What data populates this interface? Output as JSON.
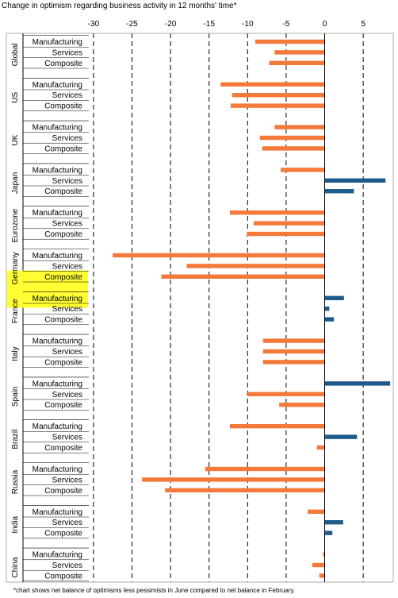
{
  "chart_data": {
    "type": "bar",
    "orientation": "horizontal",
    "title": "Change in optimism regarding business activity in 12 months' time*",
    "footnote": "*chart shows net balance of optimisms less pessimists in June compared to net balance in February.",
    "xlim": [
      -30,
      8
    ],
    "x_ticks": [
      -30,
      -25,
      -20,
      -15,
      -10,
      -5,
      0,
      5
    ],
    "grid": "vertical dashed",
    "colors": {
      "negative": "#f4793b",
      "positive": "#1f5a8c",
      "highlight": "#ffff33"
    },
    "highlight_group": "Germany",
    "groups": [
      {
        "name": "Global",
        "items": [
          {
            "label": "Manufacturing",
            "value": -9.0
          },
          {
            "label": "Services",
            "value": -6.5
          },
          {
            "label": "Composite",
            "value": -7.2
          }
        ]
      },
      {
        "name": "US",
        "items": [
          {
            "label": "Manufacturing",
            "value": -13.5
          },
          {
            "label": "Services",
            "value": -12.0
          },
          {
            "label": "Composite",
            "value": -12.2
          }
        ]
      },
      {
        "name": "UK",
        "items": [
          {
            "label": "Manufacturing",
            "value": -6.5
          },
          {
            "label": "Services",
            "value": -8.4
          },
          {
            "label": "Composite",
            "value": -8.1
          }
        ]
      },
      {
        "name": "Japan",
        "items": [
          {
            "label": "Manufacturing",
            "value": -5.7
          },
          {
            "label": "Services",
            "value": 7.9
          },
          {
            "label": "Composite",
            "value": 3.8
          }
        ]
      },
      {
        "name": "Eurozone",
        "items": [
          {
            "label": "Manufacturing",
            "value": -12.3
          },
          {
            "label": "Services",
            "value": -9.2
          },
          {
            "label": "Composite",
            "value": -10.1
          }
        ]
      },
      {
        "name": "Germany",
        "items": [
          {
            "label": "Manufacturing",
            "value": -27.5
          },
          {
            "label": "Services",
            "value": -17.9
          },
          {
            "label": "Composite",
            "value": -21.2
          }
        ]
      },
      {
        "name": "France",
        "items": [
          {
            "label": "Manufacturing",
            "value": 2.5
          },
          {
            "label": "Services",
            "value": 0.6
          },
          {
            "label": "Composite",
            "value": 1.2
          }
        ]
      },
      {
        "name": "Italy",
        "items": [
          {
            "label": "Manufacturing",
            "value": -8.0
          },
          {
            "label": "Services",
            "value": -8.0
          },
          {
            "label": "Composite",
            "value": -8.0
          }
        ]
      },
      {
        "name": "Spain",
        "items": [
          {
            "label": "Manufacturing",
            "value": 8.5
          },
          {
            "label": "Services",
            "value": -10.0
          },
          {
            "label": "Composite",
            "value": -5.9
          }
        ]
      },
      {
        "name": "Brazil",
        "items": [
          {
            "label": "Manufacturing",
            "value": -12.3
          },
          {
            "label": "Services",
            "value": 4.2
          },
          {
            "label": "Composite",
            "value": -1.0
          }
        ]
      },
      {
        "name": "Russia",
        "items": [
          {
            "label": "Manufacturing",
            "value": -15.5
          },
          {
            "label": "Services",
            "value": -23.7
          },
          {
            "label": "Composite",
            "value": -20.7
          }
        ]
      },
      {
        "name": "India",
        "items": [
          {
            "label": "Manufacturing",
            "value": -2.2
          },
          {
            "label": "Services",
            "value": 2.4
          },
          {
            "label": "Composite",
            "value": 1.0
          }
        ]
      },
      {
        "name": "China",
        "items": [
          {
            "label": "Manufacturing",
            "value": -0.2
          },
          {
            "label": "Services",
            "value": -1.6
          },
          {
            "label": "Composite",
            "value": -0.7
          }
        ]
      }
    ]
  }
}
